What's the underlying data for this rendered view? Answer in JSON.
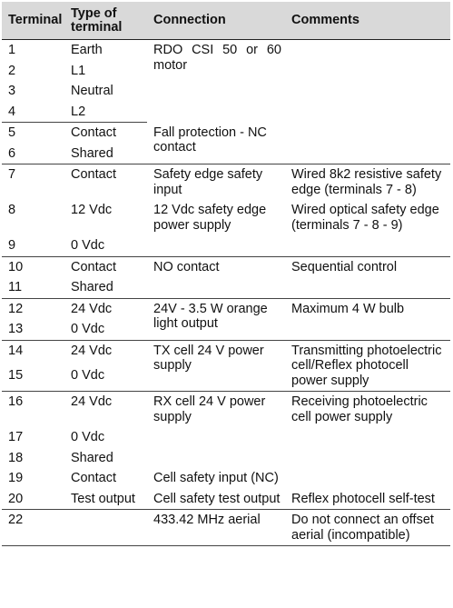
{
  "headers": {
    "terminal": "Terminal",
    "type": "Type of terminal",
    "connection": "Connection",
    "comments": "Comments"
  },
  "groups": [
    {
      "connection": "RDO CSI 50 or 60 motor",
      "comment": "",
      "rows": [
        {
          "terminal": "1",
          "type": "Earth"
        },
        {
          "terminal": "2",
          "type": "L1"
        },
        {
          "terminal": "3",
          "type": "Neutral"
        },
        {
          "terminal": "4",
          "type": "L2"
        }
      ]
    },
    {
      "connection": "Fall protection - NC contact",
      "comment": "",
      "rows": [
        {
          "terminal": "5",
          "type": "Contact"
        },
        {
          "terminal": "6",
          "type": "Shared"
        }
      ]
    },
    {
      "rows": [
        {
          "terminal": "7",
          "type": "Contact",
          "connection": "Safety edge safety input",
          "comment": "Wired 8k2 resistive safety edge (terminals 7 - 8)"
        },
        {
          "terminal": "8",
          "type": "12 Vdc",
          "connection": "12 Vdc safety edge power supply",
          "comment": "Wired optical safety edge (terminals 7 - 8 - 9)"
        },
        {
          "terminal": "9",
          "type": "0 Vdc",
          "connection": "",
          "comment": ""
        }
      ]
    },
    {
      "connection": "NO contact",
      "comment": "Sequential control",
      "rows": [
        {
          "terminal": "10",
          "type": "Contact"
        },
        {
          "terminal": "11",
          "type": "Shared"
        }
      ]
    },
    {
      "connection": "24V - 3.5 W orange light output",
      "comment": "Maximum 4 W bulb",
      "rows": [
        {
          "terminal": "12",
          "type": "24 Vdc"
        },
        {
          "terminal": "13",
          "type": "0 Vdc"
        }
      ]
    },
    {
      "connection": "TX cell 24 V power supply",
      "comment": "Transmitting photoelectric cell/Reflex photocell power supply",
      "rows": [
        {
          "terminal": "14",
          "type": "24 Vdc"
        },
        {
          "terminal": "15",
          "type": "0 Vdc"
        }
      ]
    },
    {
      "rows": [
        {
          "terminal": "16",
          "type": "24 Vdc",
          "connection": "RX cell 24 V power supply",
          "comment": "Receiving photoelectric cell power supply"
        },
        {
          "terminal": "17",
          "type": "0 Vdc",
          "connection": "",
          "comment": ""
        },
        {
          "terminal": "18",
          "type": "Shared",
          "connection": "",
          "comment": ""
        },
        {
          "terminal": "19",
          "type": "Contact",
          "connection": "Cell safety input (NC)",
          "comment": ""
        },
        {
          "terminal": "20",
          "type": "Test output",
          "connection": "Cell safety test output",
          "comment": "Reflex photocell self-test"
        }
      ]
    },
    {
      "rows": [
        {
          "terminal": "22",
          "type": "",
          "connection": "433.42 MHz aerial",
          "comment": "Do not connect an offset aerial (incompatible)"
        }
      ]
    }
  ]
}
